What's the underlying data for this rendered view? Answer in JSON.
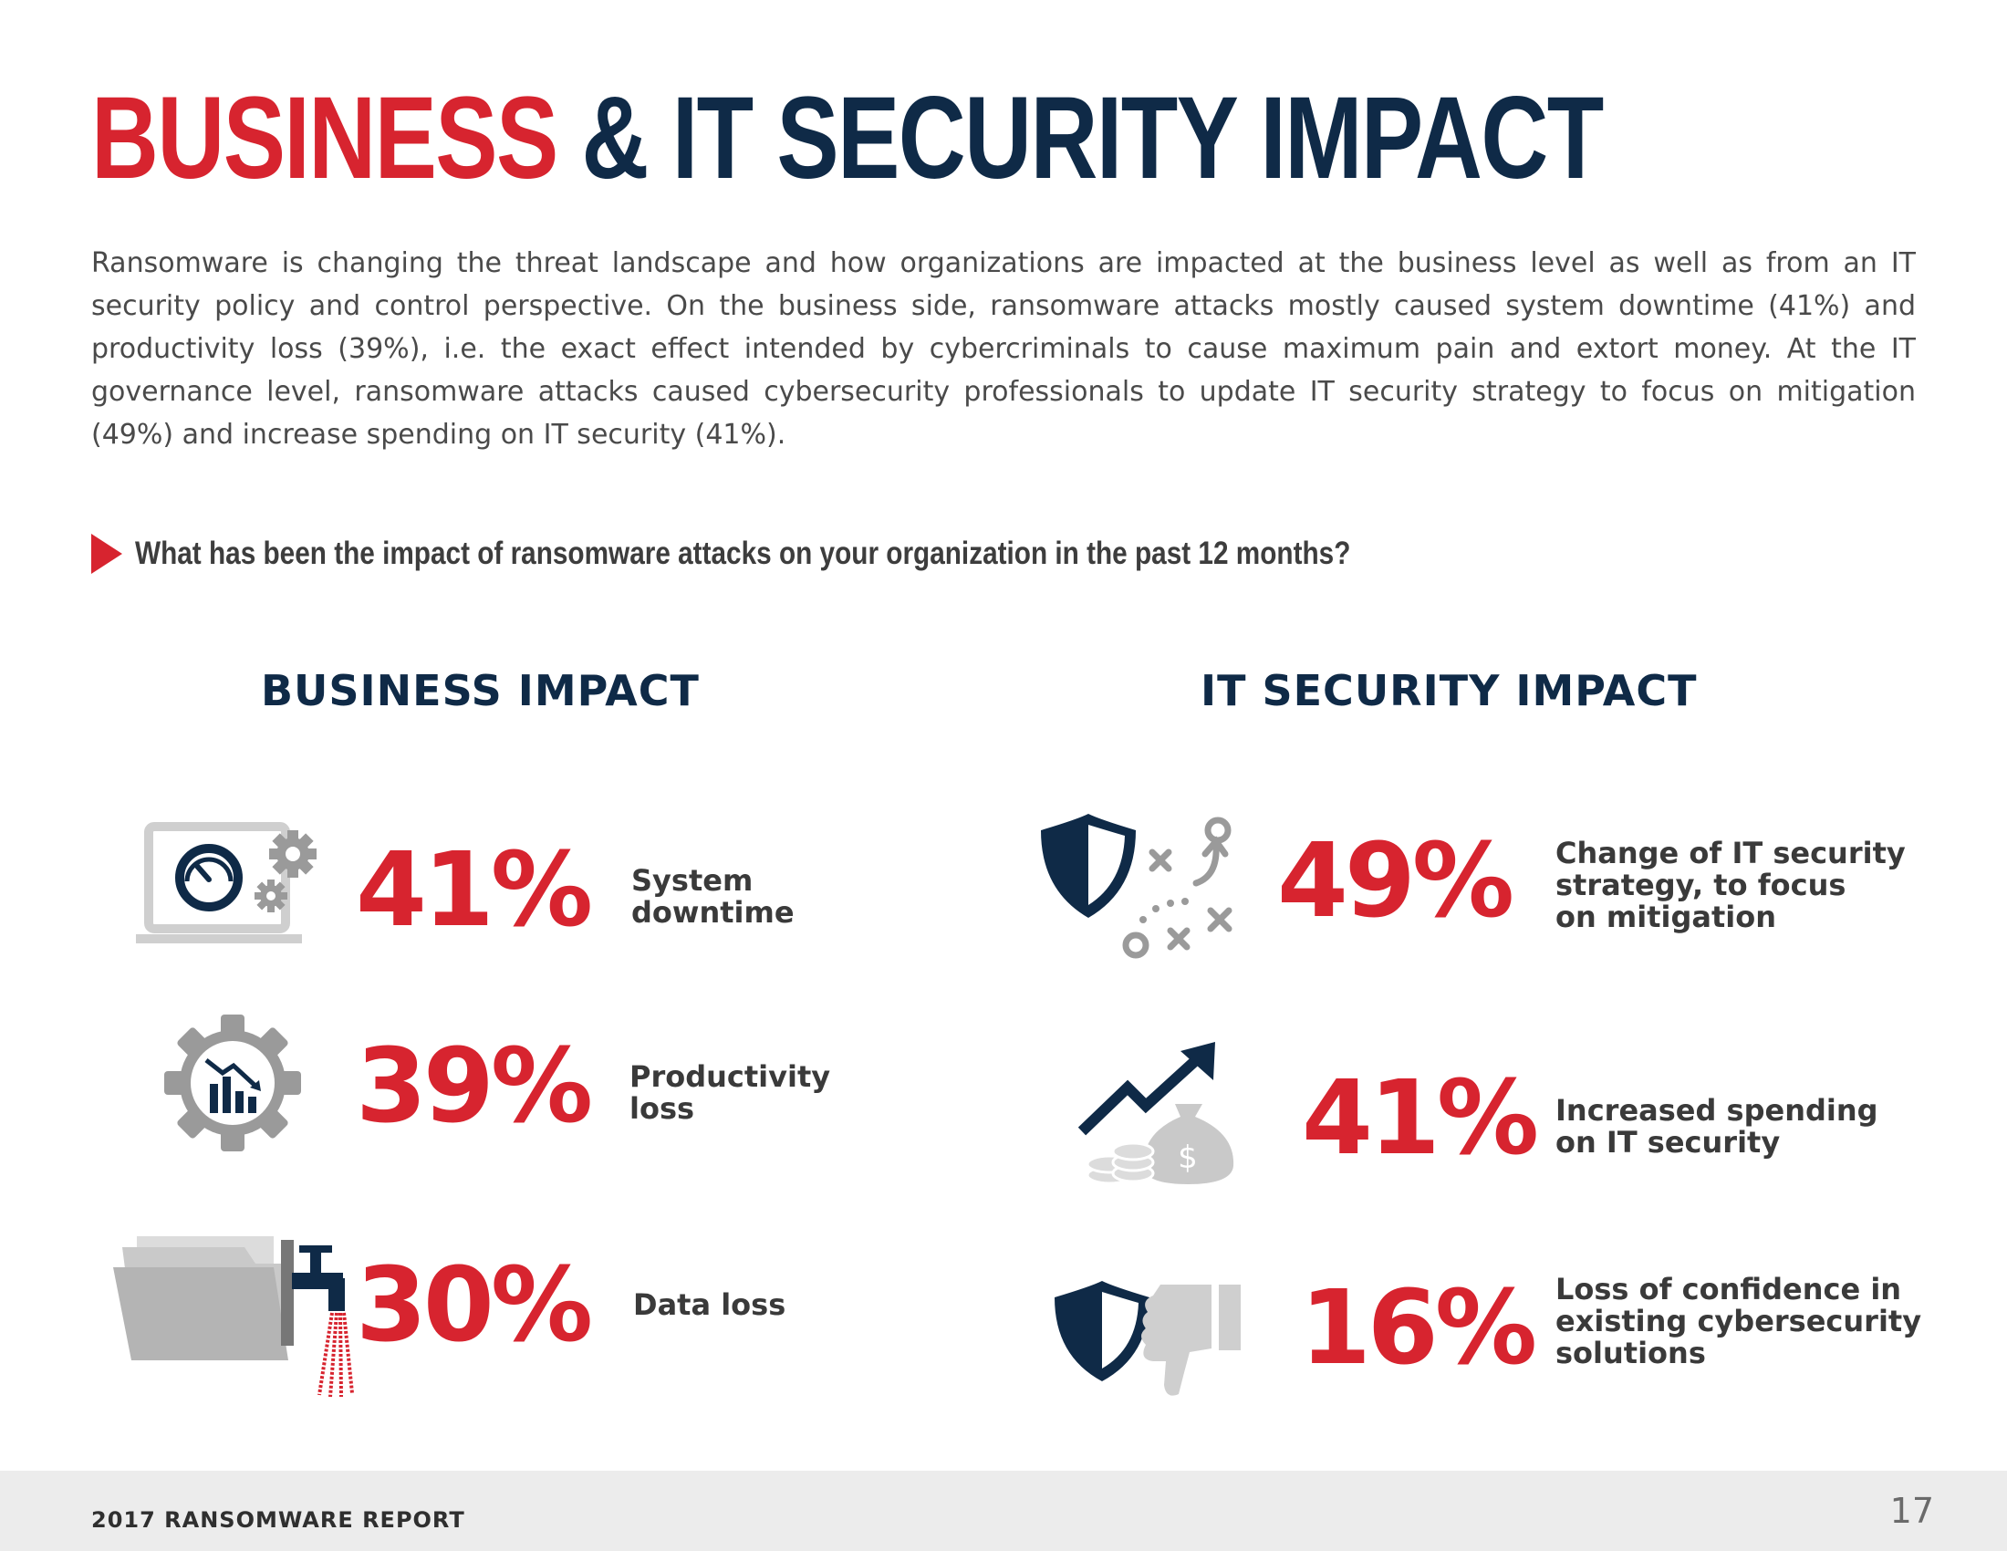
{
  "title": {
    "part1": "BUSINESS",
    "part2": "& IT SECURITY IMPACT"
  },
  "intro": "Ransomware is changing the threat landscape and how organizations are impacted at the business level as well as from an IT security policy and control perspective. On the business side, ransomware attacks mostly caused system downtime (41%) and productivity loss (39%), i.e. the exact effect intended by cybercriminals to cause maximum pain and extort money. At the IT governance level, ransomware attacks caused cybersecurity professionals to update IT security strategy to focus on mitigation (49%) and increase spending on IT security (41%).",
  "question": "What has been the impact of ransomware attacks on your organization in the past 12 months?",
  "business": {
    "heading": "BUSINESS IMPACT",
    "items": [
      {
        "percent": "41%",
        "label": "System\ndowntime",
        "icon": "laptop-gears-icon"
      },
      {
        "percent": "39%",
        "label": "Productivity\nloss",
        "icon": "gear-chart-icon"
      },
      {
        "percent": "30%",
        "label": "Data loss",
        "icon": "leaking-folder-icon"
      }
    ]
  },
  "security": {
    "heading": "IT SECURITY IMPACT",
    "items": [
      {
        "percent": "49%",
        "label": "Change of IT security\nstrategy, to focus\non mitigation",
        "icon": "shield-strategy-icon"
      },
      {
        "percent": "41%",
        "label": "Increased spending\non IT security",
        "icon": "money-growth-icon"
      },
      {
        "percent": "16%",
        "label": "Loss of confidence in\nexisting cybersecurity\nsolutions",
        "icon": "shield-thumbs-down-icon"
      }
    ]
  },
  "footer": {
    "report": "2017 RANSOMWARE REPORT",
    "page": "17"
  },
  "colors": {
    "red": "#d7242f",
    "navy": "#0f2a47",
    "gray": "#9a9a9a"
  }
}
